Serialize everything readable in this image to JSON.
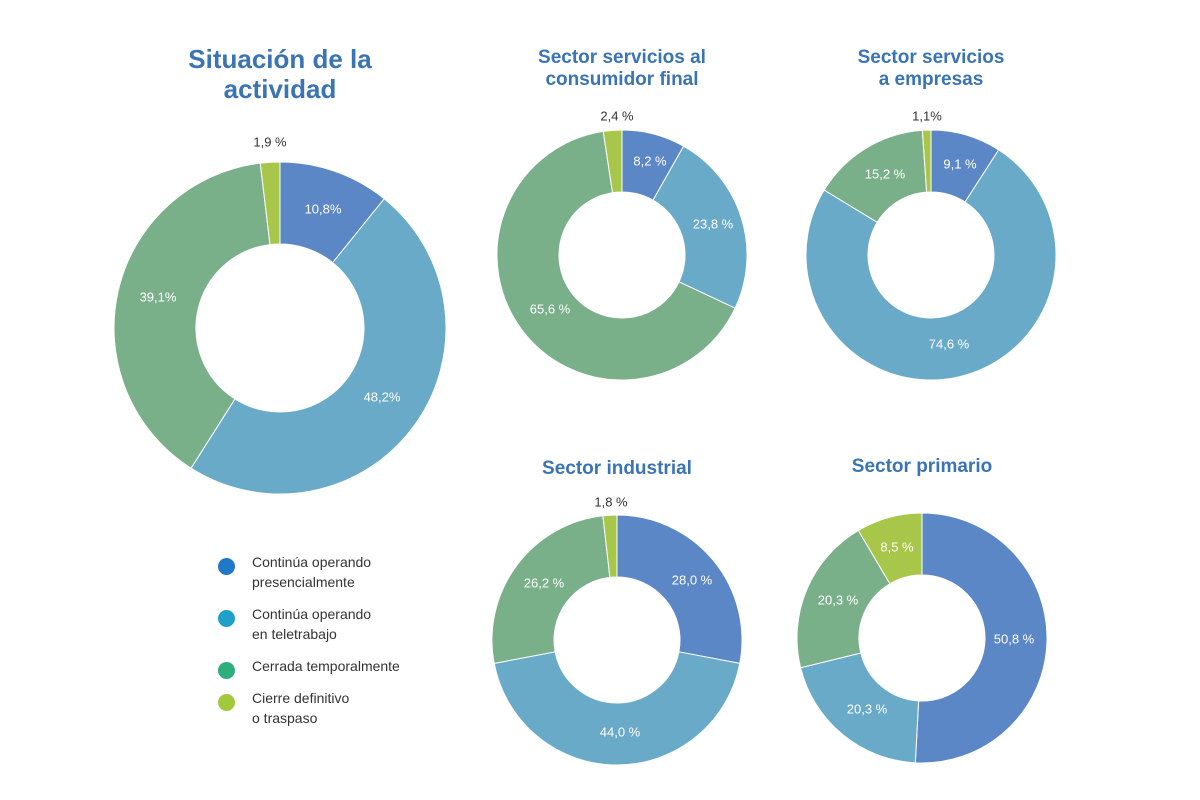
{
  "colors": {
    "presencial": "#5b87c6",
    "teletrabajo": "#6aaac9",
    "cerrada": "#79b08a",
    "cierre": "#a8c64a",
    "title": "#3a74b4"
  },
  "legend": [
    {
      "label": "Continúa operando\npresencialmente",
      "color": "#1f78c8"
    },
    {
      "label": "Continúa operando\nen teletrabajo",
      "color": "#1ea1c8"
    },
    {
      "label": "Cerrada temporalmente",
      "color": "#2fae7d"
    },
    {
      "label": "Cierre definitivo\no traspaso",
      "color": "#a2c83c"
    }
  ],
  "chart_data": [
    {
      "type": "pie",
      "title": "Situación de la\nactividad",
      "values": [
        10.8,
        48.2,
        39.1,
        1.9
      ],
      "labels": [
        "10,8%",
        "48,2%",
        "39,1%",
        "1,9 %"
      ],
      "series_keys": [
        "presencial",
        "teletrabajo",
        "cerrada",
        "cierre"
      ]
    },
    {
      "type": "pie",
      "title": "Sector servicios al\nconsumidor final",
      "values": [
        8.2,
        23.8,
        65.6,
        2.4
      ],
      "labels": [
        "8,2 %",
        "23,8 %",
        "65,6 %",
        "2,4 %"
      ],
      "series_keys": [
        "presencial",
        "teletrabajo",
        "cerrada",
        "cierre"
      ]
    },
    {
      "type": "pie",
      "title": "Sector servicios\na empresas",
      "values": [
        9.1,
        74.6,
        15.2,
        1.1
      ],
      "labels": [
        "9,1 %",
        "74,6 %",
        "15,2 %",
        "1,1%"
      ],
      "series_keys": [
        "presencial",
        "teletrabajo",
        "cerrada",
        "cierre"
      ]
    },
    {
      "type": "pie",
      "title": "Sector industrial",
      "values": [
        28.0,
        44.0,
        26.2,
        1.8
      ],
      "labels": [
        "28,0 %",
        "44,0 %",
        "26,2 %",
        "1,8 %"
      ],
      "series_keys": [
        "presencial",
        "teletrabajo",
        "cerrada",
        "cierre"
      ]
    },
    {
      "type": "pie",
      "title": "Sector primario",
      "values": [
        50.8,
        20.3,
        20.3,
        8.5
      ],
      "labels": [
        "50,8 %",
        "20,3 %",
        "20,3 %",
        "8,5 %"
      ],
      "series_keys": [
        "presencial",
        "teletrabajo",
        "cerrada",
        "cierre"
      ]
    }
  ]
}
